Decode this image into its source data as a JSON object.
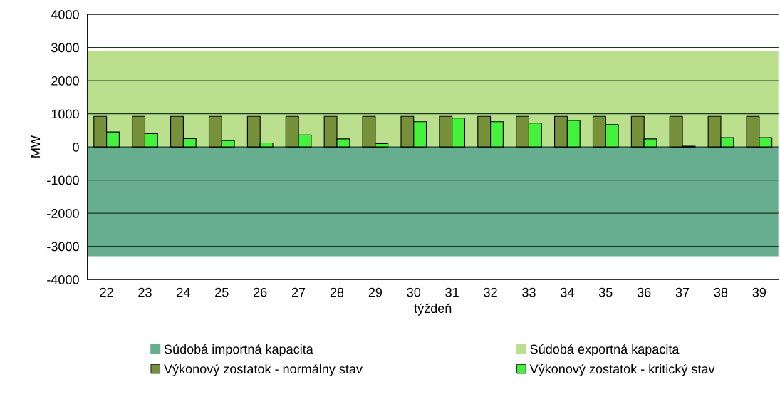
{
  "chart_data": {
    "type": "bar",
    "xlabel": "týždeň",
    "ylabel": "MW",
    "categories": [
      "22",
      "23",
      "24",
      "25",
      "26",
      "27",
      "28",
      "29",
      "30",
      "31",
      "32",
      "33",
      "34",
      "35",
      "36",
      "37",
      "38",
      "39"
    ],
    "series": [
      {
        "name": "Výkonový zostatok - normálny stav",
        "color": "#77913b",
        "values": [
          920,
          920,
          920,
          920,
          920,
          920,
          920,
          920,
          920,
          920,
          920,
          920,
          920,
          920,
          920,
          920,
          920,
          920
        ]
      },
      {
        "name": "Výkonový zostatok - kritický stav",
        "color": "#44f23c",
        "values": [
          450,
          400,
          250,
          190,
          120,
          360,
          240,
          100,
          760,
          870,
          760,
          720,
          800,
          670,
          240,
          20,
          280,
          280
        ]
      }
    ],
    "bands": [
      {
        "axis": "y",
        "from": -3300,
        "to": 0,
        "label": "Súdobá importná kapacita",
        "color": "#66ae8f"
      },
      {
        "axis": "y",
        "from": 0,
        "to": 2900,
        "label": "Súdobá exportná kapacita",
        "color": "#bae08e"
      }
    ],
    "ylim": [
      -4000,
      4000
    ],
    "yticks": [
      -4000,
      -3000,
      -2000,
      -1000,
      0,
      1000,
      2000,
      3000,
      4000
    ],
    "grid": "y",
    "legend": "bottom"
  }
}
